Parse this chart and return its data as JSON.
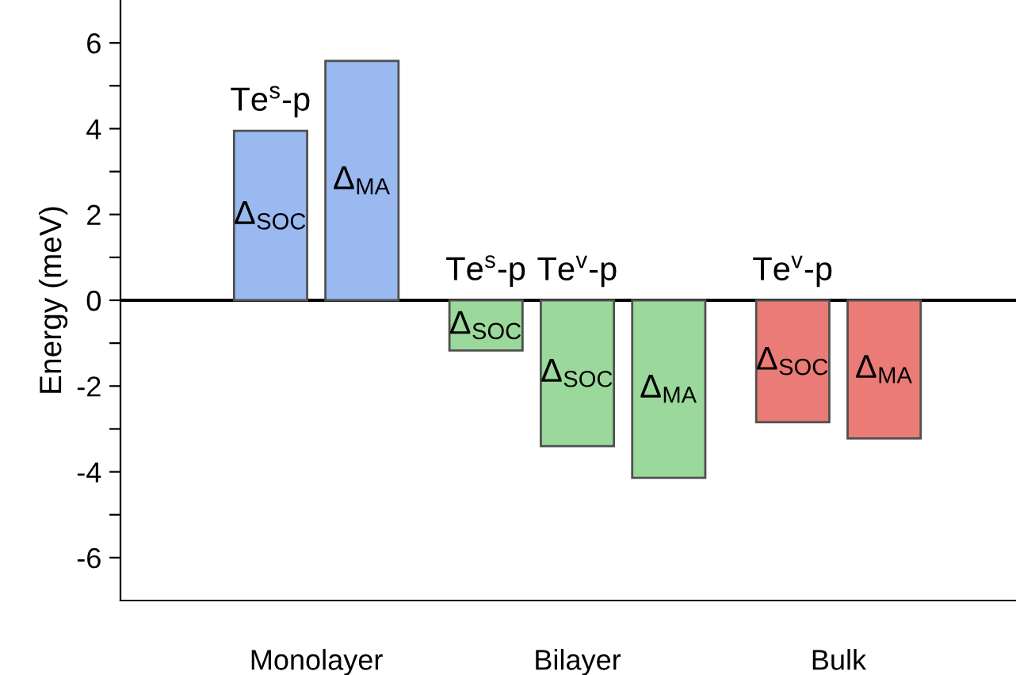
{
  "chart_data": {
    "type": "bar",
    "ylabel": "Energy (meV)",
    "categories": [
      "Monolayer",
      "Bilayer",
      "Bulk"
    ],
    "series": [
      {
        "name": "Δ$_{SOC}$",
        "colors": [
          "#99b9f0",
          "#9bd89b",
          null
        ],
        "values": [
          3.95,
          -1.17,
          null
        ]
      },
      {
        "name": "Δ$_{SOC}$",
        "colors": [
          null,
          "#9bd89b",
          "#eb7b76"
        ],
        "values": [
          null,
          -3.4,
          -2.84
        ]
      },
      {
        "name": "Δ$_{MA}$",
        "colors": [
          "#99b9f0",
          "#9bd89b",
          "#eb7b76"
        ],
        "values": [
          5.58,
          -4.14,
          -3.22
        ]
      }
    ],
    "annotations": [
      "Te$^{s}$-p",
      "Te$^{s}$-p",
      "Te$^{v}$-p",
      "Te$^{v}$-p"
    ],
    "ylim": [
      -7,
      7
    ],
    "yticks": [
      -6,
      {
        "value": -5,
        "label": null
      },
      -4,
      {
        "value": -3,
        "label": null
      },
      -2,
      {
        "value": -1,
        "label": null
      },
      0,
      {
        "value": 1,
        "label": null
      },
      2,
      {
        "value": 3,
        "label": null
      },
      4,
      {
        "value": 5,
        "label": null
      },
      6
    ],
    "ref_lines": [
      {
        "axis": "y",
        "value": 0,
        "color": "#000000"
      }
    ],
    "grid": false,
    "legend": false
  }
}
